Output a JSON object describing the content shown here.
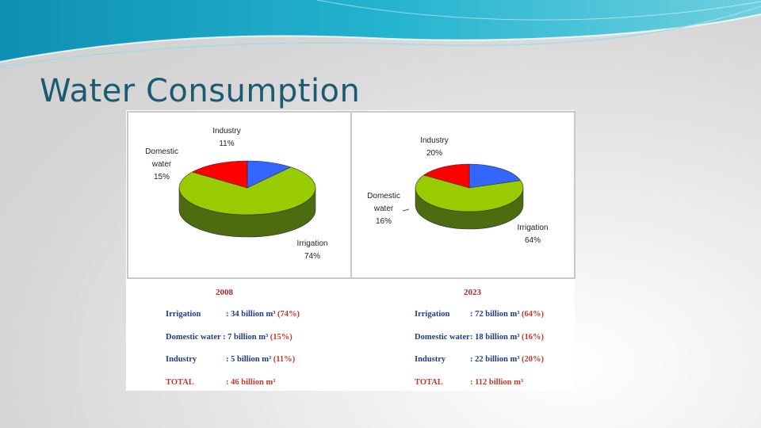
{
  "slide": {
    "title": "Water Consumption"
  },
  "colors": {
    "irrigation": "#99cc00",
    "irrigation_side": "#4d6b0f",
    "domestic": "#ff0000",
    "domestic_side": "#8b0000",
    "industry": "#3366ff",
    "industry_side": "#1a2f8a",
    "year_label": "#a52a2a",
    "stat_label": "#1f3a8a",
    "stat_pct": "#c0392b"
  },
  "chart_data": [
    {
      "type": "pie",
      "year": "2008",
      "slices": [
        {
          "key": "irrigation",
          "label_lines": [
            "Irrigation"
          ],
          "pct_label": "74%",
          "value": 74
        },
        {
          "key": "domestic",
          "label_lines": [
            "Domestic",
            "water"
          ],
          "pct_label": "15%",
          "value": 15
        },
        {
          "key": "industry",
          "label_lines": [
            "Industry"
          ],
          "pct_label": "11%",
          "value": 11
        }
      ],
      "table": {
        "rows": [
          {
            "category": "Irrigation",
            "value": ": 34 billion m³",
            "pct": "(74%)"
          },
          {
            "category": "Domestic water",
            "value": ":  7 billion m³",
            "pct": "(15%)"
          },
          {
            "category": "Industry",
            "value": ":  5 billion m³",
            "pct": "(11%)"
          }
        ],
        "total": {
          "category": "TOTAL",
          "value": ": 46 billion m³"
        }
      }
    },
    {
      "type": "pie",
      "year": "2023",
      "slices": [
        {
          "key": "irrigation",
          "label_lines": [
            "Irrigation"
          ],
          "pct_label": "64%",
          "value": 64
        },
        {
          "key": "domestic",
          "label_lines": [
            "Domestic",
            "water"
          ],
          "pct_label": "16%",
          "value": 16
        },
        {
          "key": "industry",
          "label_lines": [
            "Industry"
          ],
          "pct_label": "20%",
          "value": 20
        }
      ],
      "table": {
        "rows": [
          {
            "category": "Irrigation",
            "value": ":  72 billion m³",
            "pct": "(64%)"
          },
          {
            "category": "Domestic water",
            "value": ":  18 billion m³",
            "pct": "(16%)"
          },
          {
            "category": "Industry",
            "value": ":  22 billion m³",
            "pct": "(20%)"
          }
        ],
        "total": {
          "category": "TOTAL",
          "value": ": 112 billion m³"
        }
      }
    }
  ]
}
